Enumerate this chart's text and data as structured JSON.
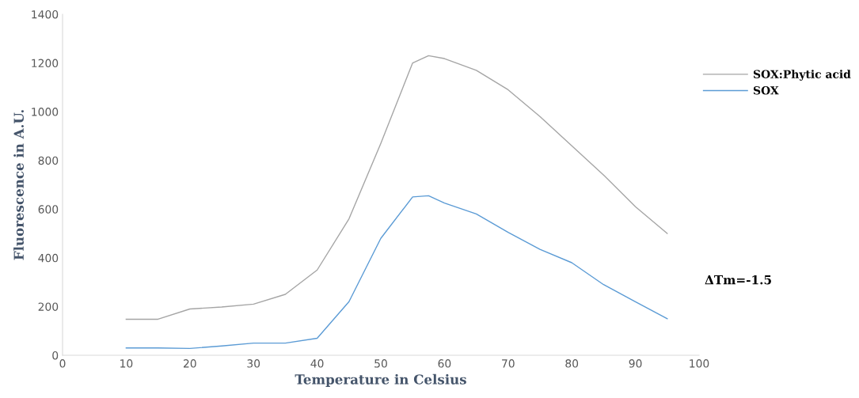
{
  "chart_data": {
    "type": "line",
    "xlabel": "Temperature in Celsius",
    "ylabel": "Fluorescence in A.U.",
    "x": [
      10,
      15,
      20,
      25,
      30,
      35,
      40,
      45,
      50,
      55,
      57.5,
      60,
      65,
      70,
      75,
      80,
      85,
      90,
      95
    ],
    "series": [
      {
        "name": "SOX:Phytic acid",
        "color": "#a5a5a5",
        "values": [
          148,
          148,
          190,
          198,
          210,
          250,
          350,
          560,
          870,
          1200,
          1230,
          1218,
          1170,
          1090,
          980,
          860,
          740,
          610,
          500
        ]
      },
      {
        "name": "SOX",
        "color": "#5b9bd5",
        "values": [
          30,
          30,
          28,
          38,
          50,
          50,
          70,
          220,
          480,
          650,
          655,
          625,
          580,
          505,
          435,
          380,
          290,
          220,
          150
        ]
      }
    ],
    "xlim": [
      0,
      100
    ],
    "xticks": [
      0,
      10,
      20,
      30,
      40,
      50,
      60,
      70,
      80,
      90,
      100
    ],
    "ylim": [
      0,
      1400
    ],
    "yticks": [
      0,
      200,
      400,
      600,
      800,
      1000,
      1200,
      1400
    ],
    "grid": false,
    "legend": "right",
    "marker": "none",
    "line_style": "solid",
    "annotations": [
      "ΔTm=-1.5"
    ]
  }
}
